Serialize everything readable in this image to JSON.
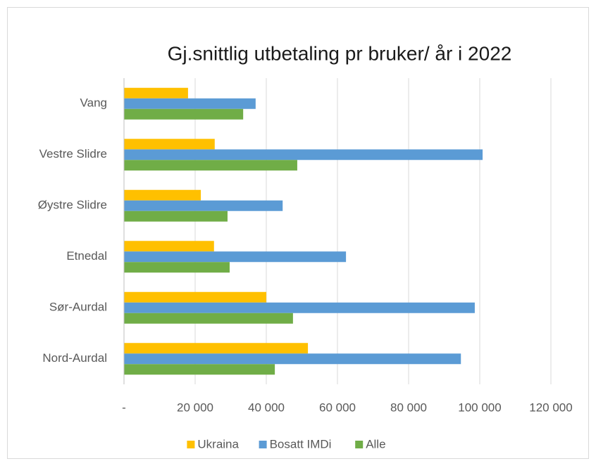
{
  "chart_data": {
    "type": "bar",
    "orientation": "horizontal",
    "title": "Gj.snittlig utbetaling pr bruker/ år i 2022",
    "categories": [
      "Vang",
      "Vestre Slidre",
      "Øystre Slidre",
      "Etnedal",
      "Sør-Aurdal",
      "Nord-Aurdal"
    ],
    "series": [
      {
        "name": "Ukraina",
        "color": "#FFC000",
        "values": [
          18000,
          25500,
          21600,
          25300,
          40000,
          51700
        ]
      },
      {
        "name": "Bosatt IMDi",
        "color": "#5B9BD5",
        "values": [
          37000,
          100800,
          44600,
          62400,
          98600,
          94700
        ]
      },
      {
        "name": "Alle",
        "color": "#70AD47",
        "values": [
          33500,
          48700,
          29100,
          29700,
          47500,
          42400
        ]
      }
    ],
    "xlim": [
      0,
      120000
    ],
    "xticks": [
      {
        "value": 0,
        "label": "-"
      },
      {
        "value": 20000,
        "label": "20 000"
      },
      {
        "value": 40000,
        "label": "40 000"
      },
      {
        "value": 60000,
        "label": "60 000"
      },
      {
        "value": 80000,
        "label": "80 000"
      },
      {
        "value": 100000,
        "label": "100 000"
      },
      {
        "value": 120000,
        "label": "120 000"
      }
    ],
    "grid": true,
    "legend": "bottom"
  }
}
